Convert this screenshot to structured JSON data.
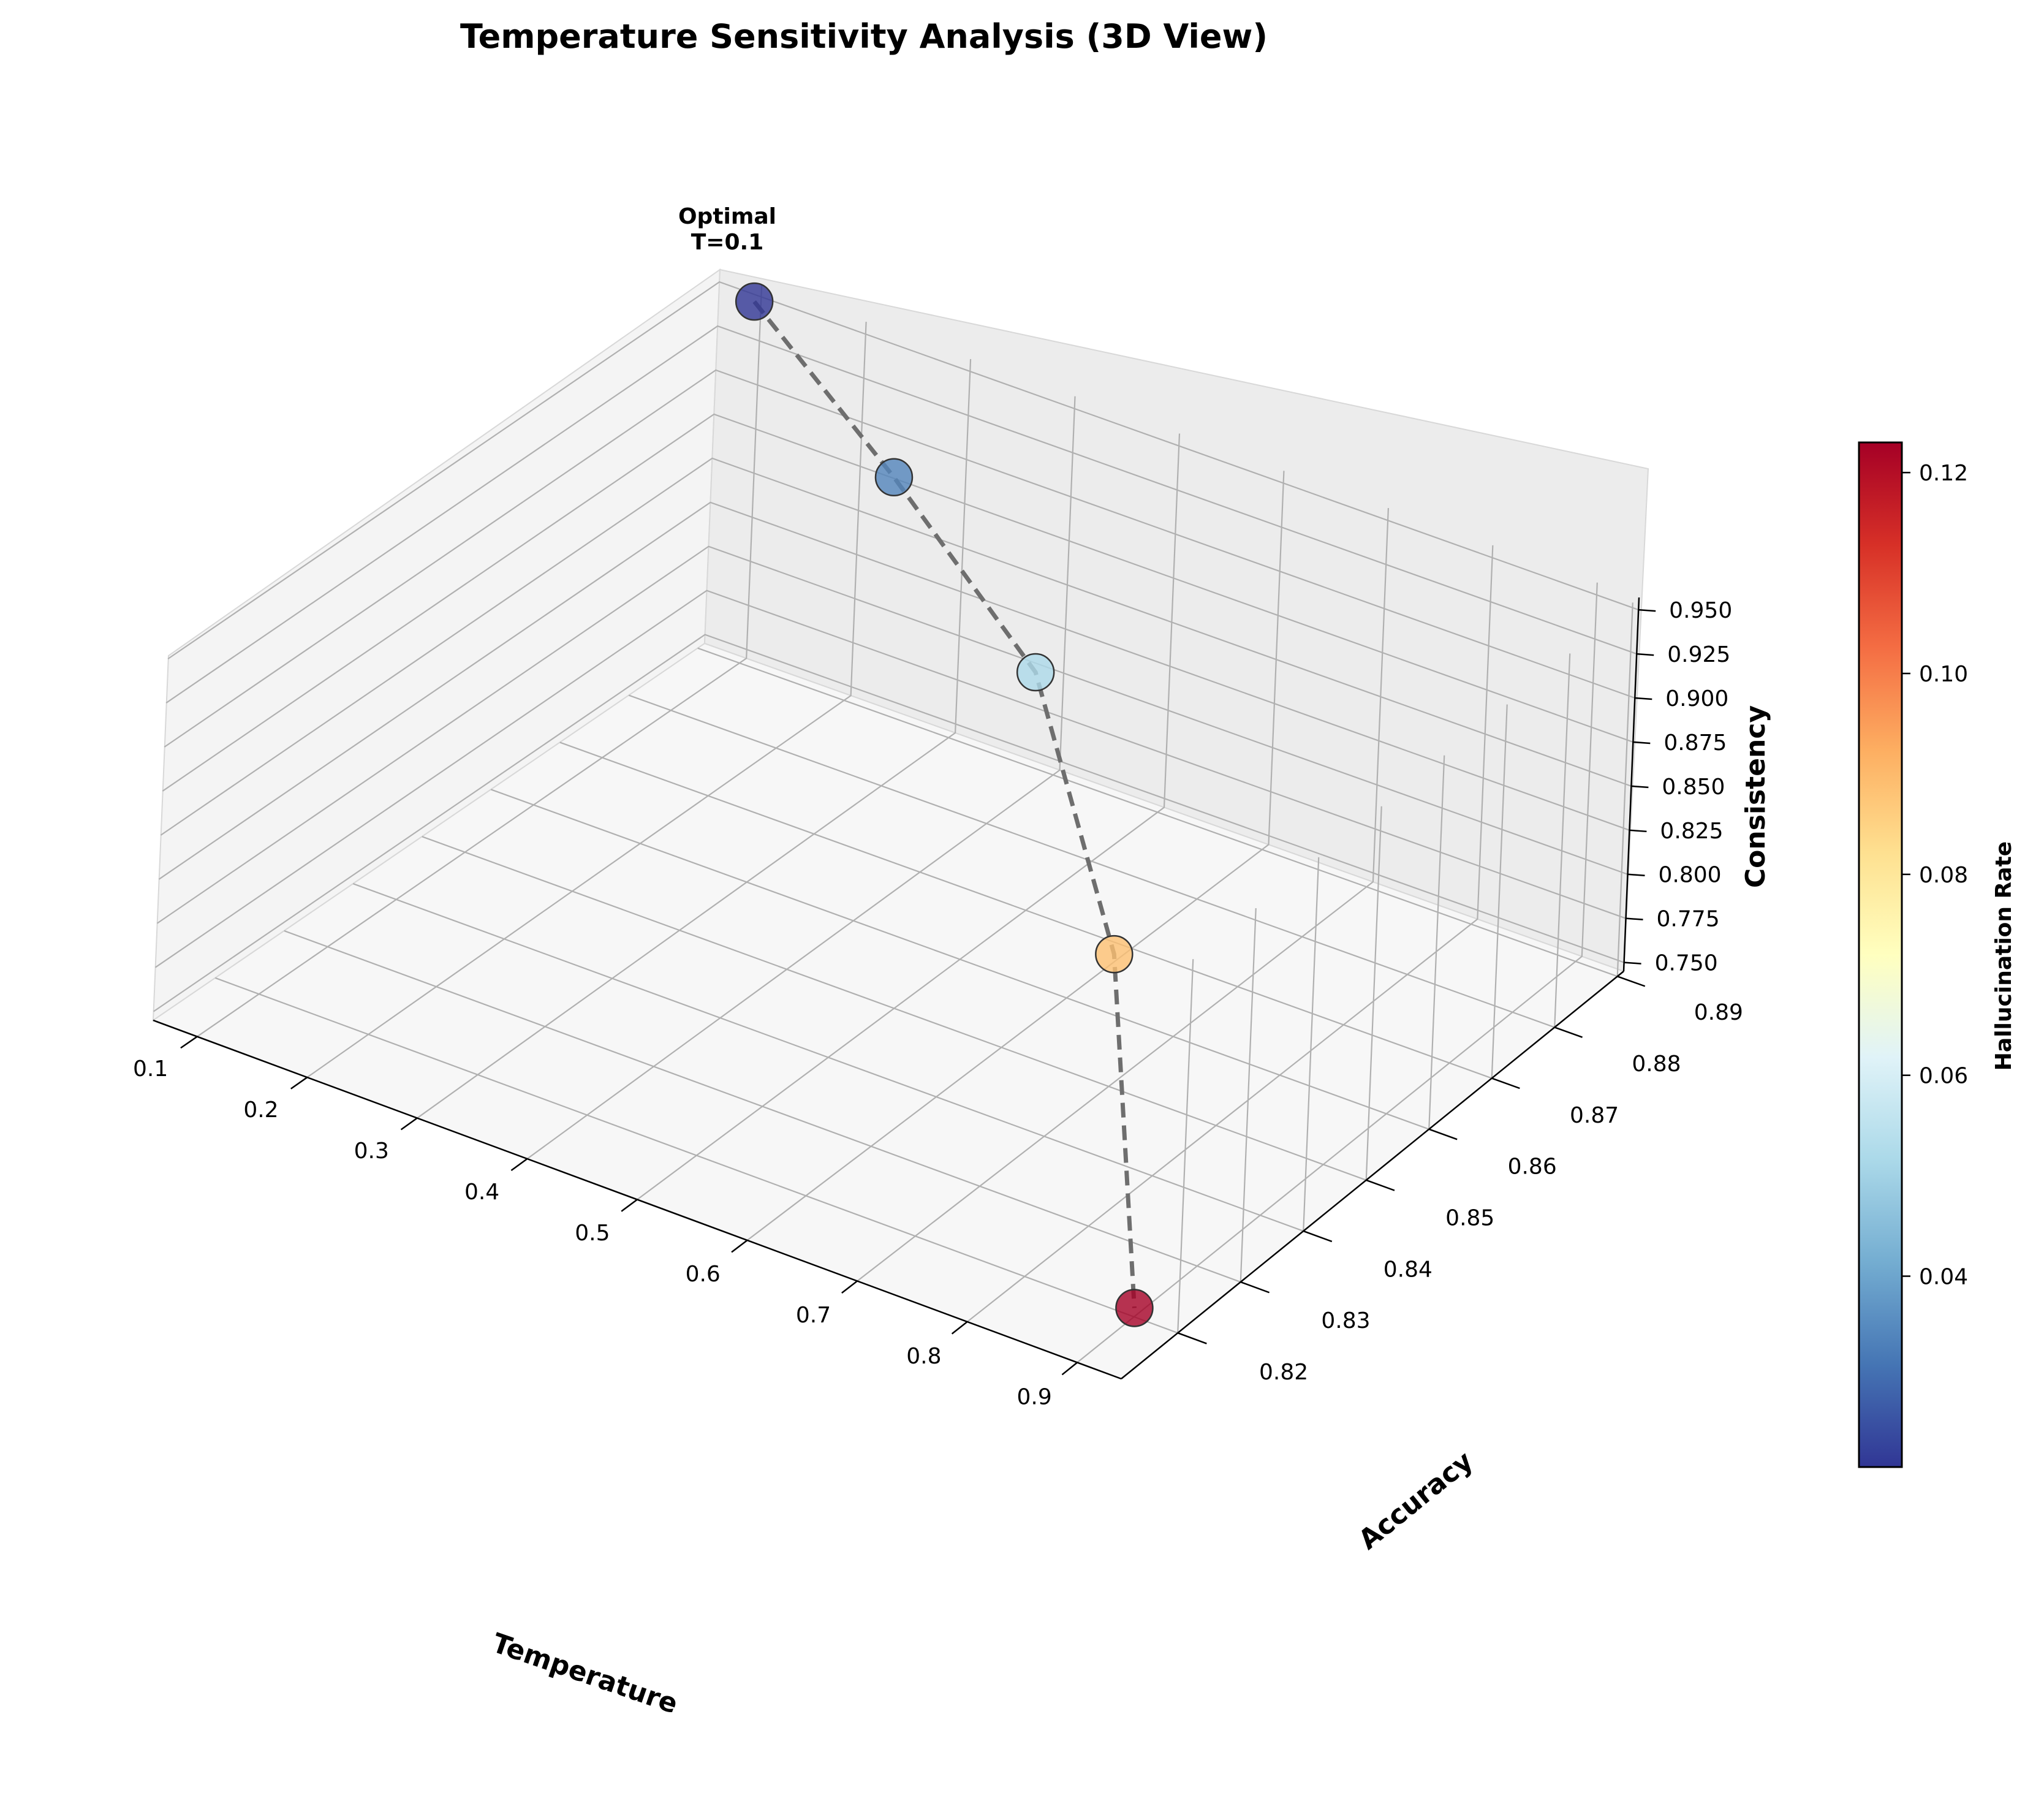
{
  "chart_data": {
    "type": "scatter",
    "projection": "3d",
    "title": "Temperature Sensitivity Analysis (3D View)",
    "xlabel": "Temperature",
    "ylabel": "Accuracy",
    "zlabel": "Consistency",
    "colorbar_label": "Hallucination Rate",
    "colormap": "RdYlBu_r",
    "xlim": [
      0.06,
      0.94
    ],
    "ylim": [
      0.811,
      0.891
    ],
    "zlim": [
      0.745,
      0.957
    ],
    "x_ticks": [
      "0.1",
      "0.2",
      "0.3",
      "0.4",
      "0.5",
      "0.6",
      "0.7",
      "0.8",
      "0.9"
    ],
    "y_ticks": [
      "0.82",
      "0.83",
      "0.84",
      "0.85",
      "0.86",
      "0.87",
      "0.88",
      "0.89"
    ],
    "z_ticks": [
      "0.750",
      "0.775",
      "0.800",
      "0.825",
      "0.850",
      "0.875",
      "0.900",
      "0.925",
      "0.950"
    ],
    "colorbar_ticks": [
      "0.04",
      "0.06",
      "0.08",
      "0.10",
      "0.12"
    ],
    "colorbar_range": [
      0.021,
      0.123
    ],
    "grid": true,
    "connect_points": true,
    "line_style": "dashed",
    "annotation": {
      "text_line1": "Optimal",
      "text_line2": "T=0.1"
    },
    "points": [
      {
        "temperature": 0.1,
        "accuracy": 0.89,
        "consistency": 0.95,
        "hallucination_rate": 0.021
      },
      {
        "temperature": 0.3,
        "accuracy": 0.88,
        "consistency": 0.92,
        "hallucination_rate": 0.034
      },
      {
        "temperature": 0.5,
        "accuracy": 0.87,
        "consistency": 0.88,
        "hallucination_rate": 0.052
      },
      {
        "temperature": 0.7,
        "accuracy": 0.85,
        "consistency": 0.82,
        "hallucination_rate": 0.089
      },
      {
        "temperature": 0.9,
        "accuracy": 0.82,
        "consistency": 0.75,
        "hallucination_rate": 0.123
      }
    ]
  }
}
